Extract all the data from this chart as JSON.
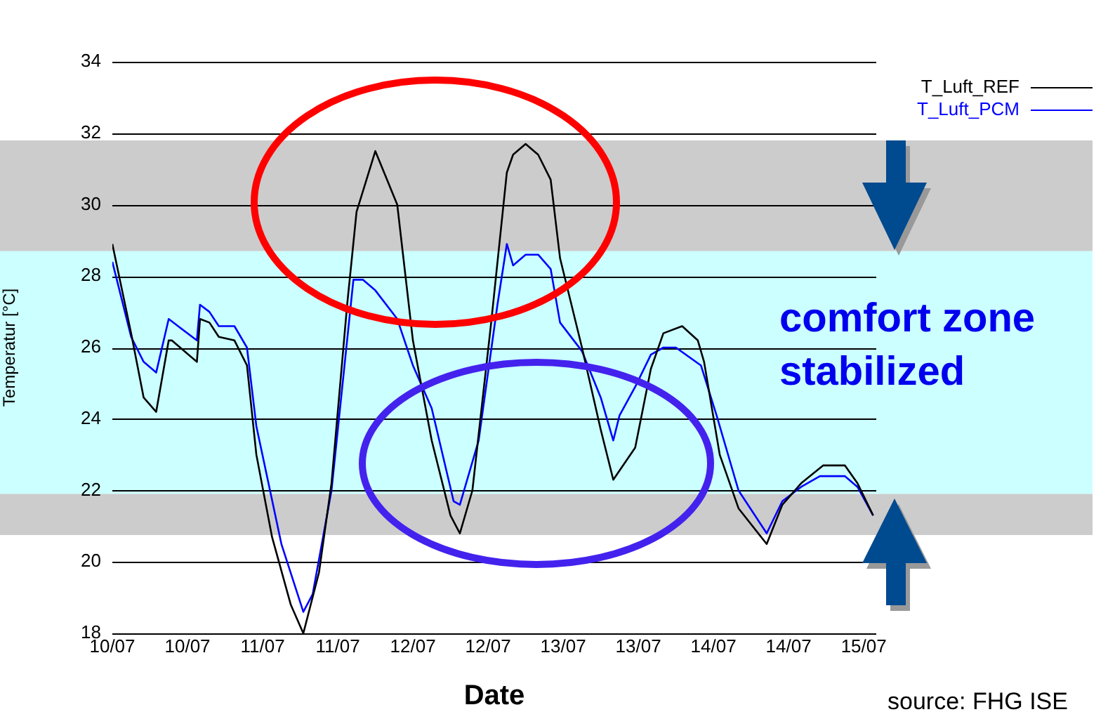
{
  "chart_data": {
    "type": "line",
    "xlabel": "Date",
    "ylabel": "Temperatur [°C]",
    "xlim": [
      "--07-10T00:00",
      "--07-15T02:00"
    ],
    "xticks": [
      {
        "value": "--07-10T00:00",
        "label": "10/07"
      },
      {
        "value": "--07-10T12:00",
        "label": "10/07"
      },
      {
        "value": "--07-11T00:00",
        "label": "11/07"
      },
      {
        "value": "--07-11T12:00",
        "label": "11/07"
      },
      {
        "value": "--07-12T00:00",
        "label": "12/07"
      },
      {
        "value": "--07-12T12:00",
        "label": "12/07"
      },
      {
        "value": "--07-13T00:00",
        "label": "13/07"
      },
      {
        "value": "--07-13T12:00",
        "label": "13/07"
      },
      {
        "value": "--07-14T00:00",
        "label": "14/07"
      },
      {
        "value": "--07-14T12:00",
        "label": "14/07"
      },
      {
        "value": "--07-15T00:00",
        "label": "15/07"
      }
    ],
    "ylim": [
      18,
      34
    ],
    "yticks": [
      18,
      20,
      22,
      24,
      26,
      28,
      30,
      32,
      34
    ],
    "grid": "y",
    "legend": "top right",
    "marker": "none",
    "line_style": "solid",
    "bands": [
      {
        "axis": "y",
        "from": 28.7,
        "to": 31.8,
        "color": "#cccccc"
      },
      {
        "axis": "y",
        "from": 21.9,
        "to": 28.7,
        "color": "#ccffff"
      },
      {
        "axis": "y",
        "from": 20.75,
        "to": 21.9,
        "color": "#cccccc"
      }
    ],
    "annotations": [
      "comfort zone stabilized",
      "source: FHG ISE"
    ],
    "series": [
      {
        "name": "T_Luft_REF",
        "color": "#000000",
        "x": [
          "--07-10T00:00",
          "--07-10T03:00",
          "--07-10T05:00",
          "--07-10T07:00",
          "--07-10T09:00",
          "--07-10T09:30",
          "--07-10T13:30",
          "--07-10T14:00",
          "--07-10T15:30",
          "--07-10T17:00",
          "--07-10T19:30",
          "--07-10T21:30",
          "--07-10T23:00",
          "--07-11T01:30",
          "--07-11T04:30",
          "--07-11T06:30",
          "--07-11T09:00",
          "--07-11T11:00",
          "--07-11T13:30",
          "--07-11T15:00",
          "--07-11T18:00",
          "--07-11T21:30",
          "--07-12T00:00",
          "--07-12T03:00",
          "--07-12T06:00",
          "--07-12T07:30",
          "--07-12T09:30",
          "--07-12T12:30",
          "--07-12T15:00",
          "--07-12T16:00",
          "--07-12T18:00",
          "--07-12T20:00",
          "--07-12T22:00",
          "--07-12T23:30",
          "--07-13T03:00",
          "--07-13T06:00",
          "--07-13T08:00",
          "--07-13T11:30",
          "--07-13T14:00",
          "--07-13T16:00",
          "--07-13T19:00",
          "--07-13T21:30",
          "--07-13T22:30",
          "--07-14T01:00",
          "--07-14T04:00",
          "--07-14T08:30",
          "--07-14T11:00",
          "--07-14T14:00",
          "--07-14T17:30",
          "--07-14T21:00",
          "--07-14T23:00",
          "--07-15T01:30"
        ],
        "values": [
          28.9,
          26.4,
          24.6,
          24.2,
          26.2,
          26.2,
          25.6,
          26.8,
          26.7,
          26.3,
          26.2,
          25.5,
          23,
          20.7,
          18.8,
          18,
          19.7,
          22.2,
          27.2,
          29.8,
          31.5,
          30,
          26.2,
          23.4,
          21.3,
          20.8,
          22,
          26.7,
          30.9,
          31.4,
          31.7,
          31.4,
          30.7,
          28.5,
          26,
          23.7,
          22.3,
          23.2,
          25.4,
          26.4,
          26.6,
          26.2,
          25.6,
          23,
          21.5,
          20.5,
          21.6,
          22.2,
          22.7,
          22.7,
          22.2,
          21.3
        ]
      },
      {
        "name": "T_Luft_PCM",
        "color": "#0000ff",
        "x": [
          "--07-10T00:00",
          "--07-10T03:00",
          "--07-10T05:00",
          "--07-10T07:00",
          "--07-10T09:00",
          "--07-10T10:30",
          "--07-10T13:30",
          "--07-10T14:00",
          "--07-10T15:30",
          "--07-10T17:00",
          "--07-10T19:30",
          "--07-10T21:30",
          "--07-10T23:00",
          "--07-11T03:00",
          "--07-11T06:30",
          "--07-11T08:00",
          "--07-11T11:00",
          "--07-11T14:30",
          "--07-11T16:00",
          "--07-11T18:00",
          "--07-11T21:30",
          "--07-12T00:00",
          "--07-12T03:00",
          "--07-12T06:30",
          "--07-12T07:30",
          "--07-12T10:30",
          "--07-12T13:30",
          "--07-12T15:00",
          "--07-12T16:00",
          "--07-12T18:00",
          "--07-12T20:00",
          "--07-12T22:00",
          "--07-12T23:30",
          "--07-13T03:00",
          "--07-13T06:00",
          "--07-13T08:00",
          "--07-13T09:00",
          "--07-13T11:30",
          "--07-13T14:00",
          "--07-13T16:00",
          "--07-13T18:00",
          "--07-13T22:00",
          "--07-14T00:30",
          "--07-14T04:00",
          "--07-14T08:30",
          "--07-14T11:00",
          "--07-14T14:00",
          "--07-14T17:00",
          "--07-14T21:00",
          "--07-14T23:00",
          "--07-15T01:30"
        ],
        "values": [
          28.4,
          26.3,
          25.6,
          25.3,
          26.8,
          26.6,
          26.2,
          27.2,
          27,
          26.6,
          26.6,
          26,
          23.8,
          20.5,
          18.6,
          19.1,
          22,
          27.9,
          27.9,
          27.6,
          26.8,
          25.5,
          24.3,
          21.7,
          21.6,
          23.4,
          27.2,
          28.9,
          28.3,
          28.6,
          28.6,
          28.2,
          26.7,
          25.9,
          24.6,
          23.4,
          24.1,
          24.9,
          25.8,
          26,
          26,
          25.5,
          24.1,
          22,
          20.8,
          21.7,
          22.1,
          22.4,
          22.4,
          22.1,
          21.3
        ]
      }
    ]
  }
}
